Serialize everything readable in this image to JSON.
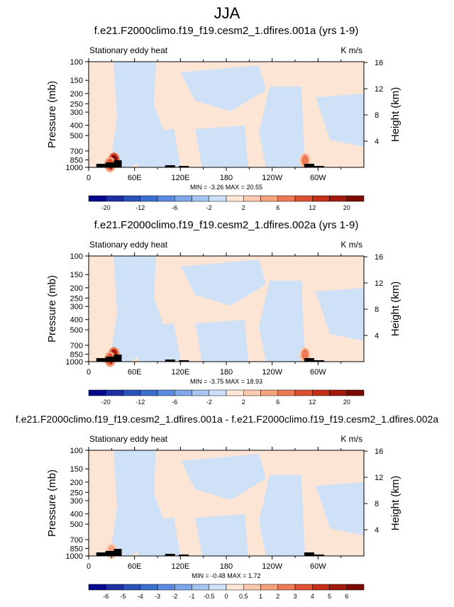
{
  "page": {
    "title": "JJA"
  },
  "chart_data": [
    {
      "type": "heatmap",
      "title": "f.e21.F2000climo.f19_f19.cesm2_1.dfires.001a (yrs 1-9)",
      "subtitle_left": "Stationary eddy heat",
      "subtitle_right": "K m/s",
      "ylabel": "Pressure (mb)",
      "ylabel_right": "Height (km)",
      "x_ticks": [
        "0",
        "60E",
        "120E",
        "180",
        "120W",
        "60W"
      ],
      "x_tick_lon": [
        0,
        60,
        120,
        180,
        240,
        300
      ],
      "xlim": [
        0,
        360
      ],
      "y_ticks": [
        "100",
        "150",
        "200",
        "250",
        "300",
        "400",
        "500",
        "700",
        "850",
        "1000"
      ],
      "y_tick_values": [
        100,
        150,
        200,
        250,
        300,
        400,
        500,
        700,
        850,
        1000
      ],
      "ylim": [
        1000,
        100
      ],
      "height_ticks": [
        "16",
        "12",
        "8",
        "4"
      ],
      "height_tick_values": [
        16,
        12,
        8,
        4
      ],
      "stats": "MIN = -3.26  MAX = 20.55",
      "colorbar_labels": [
        "-20",
        "-12",
        "-6",
        "-2",
        "2",
        "6",
        "12",
        "20"
      ],
      "colorbar_levels": [
        -20,
        -16,
        -12,
        -8,
        -6,
        -4,
        -2,
        -1,
        1,
        2,
        4,
        6,
        8,
        12,
        16,
        20
      ],
      "highlights": [
        {
          "lon": 33,
          "p": 860,
          "value": 16
        },
        {
          "lon": 28,
          "p": 940,
          "value": 6
        },
        {
          "lon": 283,
          "p": 860,
          "value": 4
        }
      ]
    },
    {
      "type": "heatmap",
      "title": "f.e21.F2000climo.f19_f19.cesm2_1.dfires.002a (yrs 1-9)",
      "subtitle_left": "Stationary eddy heat",
      "subtitle_right": "K m/s",
      "ylabel": "Pressure (mb)",
      "ylabel_right": "Height (km)",
      "x_ticks": [
        "0",
        "60E",
        "120E",
        "180",
        "120W",
        "60W"
      ],
      "x_tick_lon": [
        0,
        60,
        120,
        180,
        240,
        300
      ],
      "xlim": [
        0,
        360
      ],
      "y_ticks": [
        "100",
        "150",
        "200",
        "250",
        "300",
        "400",
        "500",
        "700",
        "850",
        "1000"
      ],
      "y_tick_values": [
        100,
        150,
        200,
        250,
        300,
        400,
        500,
        700,
        850,
        1000
      ],
      "ylim": [
        1000,
        100
      ],
      "height_ticks": [
        "16",
        "12",
        "8",
        "4"
      ],
      "height_tick_values": [
        16,
        12,
        8,
        4
      ],
      "stats": "MIN = -3.75  MAX = 18.93",
      "colorbar_labels": [
        "-20",
        "-12",
        "-6",
        "-2",
        "2",
        "6",
        "12",
        "20"
      ],
      "colorbar_levels": [
        -20,
        -16,
        -12,
        -8,
        -6,
        -4,
        -2,
        -1,
        1,
        2,
        4,
        6,
        8,
        12,
        16,
        20
      ],
      "highlights": [
        {
          "lon": 33,
          "p": 860,
          "value": 14
        },
        {
          "lon": 28,
          "p": 950,
          "value": 6
        },
        {
          "lon": 283,
          "p": 860,
          "value": 4
        }
      ]
    },
    {
      "type": "heatmap",
      "title": "f.e21.F2000climo.f19_f19.cesm2_1.dfires.001a - f.e21.F2000climo.f19_f19.cesm2_1.dfires.002a",
      "subtitle_left": "Stationary eddy heat",
      "subtitle_right": "K m/s",
      "ylabel": "Pressure (mb)",
      "ylabel_right": "Height (km)",
      "x_ticks": [
        "0",
        "60E",
        "120E",
        "180",
        "120W",
        "60W"
      ],
      "x_tick_lon": [
        0,
        60,
        120,
        180,
        240,
        300
      ],
      "xlim": [
        0,
        360
      ],
      "y_ticks": [
        "100",
        "150",
        "200",
        "250",
        "300",
        "400",
        "500",
        "700",
        "850",
        "1000"
      ],
      "y_tick_values": [
        100,
        150,
        200,
        250,
        300,
        400,
        500,
        700,
        850,
        1000
      ],
      "ylim": [
        1000,
        100
      ],
      "height_ticks": [
        "16",
        "12",
        "8",
        "4"
      ],
      "height_tick_values": [
        16,
        12,
        8,
        4
      ],
      "stats": "MIN = -0.48  MAX = 1.72",
      "colorbar_labels": [
        "-6",
        "-5",
        "-4",
        "-3",
        "-2",
        "-1",
        "-0.5",
        "0",
        "0.5",
        "1",
        "2",
        "3",
        "4",
        "5",
        "6"
      ],
      "colorbar_levels": [
        -6,
        -5,
        -4,
        -3,
        -2,
        -1,
        -0.5,
        0,
        0.5,
        1,
        2,
        3,
        4,
        5,
        6
      ],
      "highlights": [
        {
          "lon": 30,
          "p": 900,
          "value": 1.5
        }
      ]
    }
  ],
  "colors": {
    "palette": [
      "#08088e",
      "#1d2fa3",
      "#2a52b8",
      "#3a6fce",
      "#5a8be0",
      "#7ea8ec",
      "#a5c5f2",
      "#cde0fa",
      "#ffe6d6",
      "#fbcab0",
      "#f5a27f",
      "#ec7a55",
      "#de5030",
      "#c52e18",
      "#a11a0b",
      "#7a0a04"
    ],
    "pos_light": "#fde5d5",
    "neg_light": "#cfe1f7",
    "topo": "#000000"
  }
}
